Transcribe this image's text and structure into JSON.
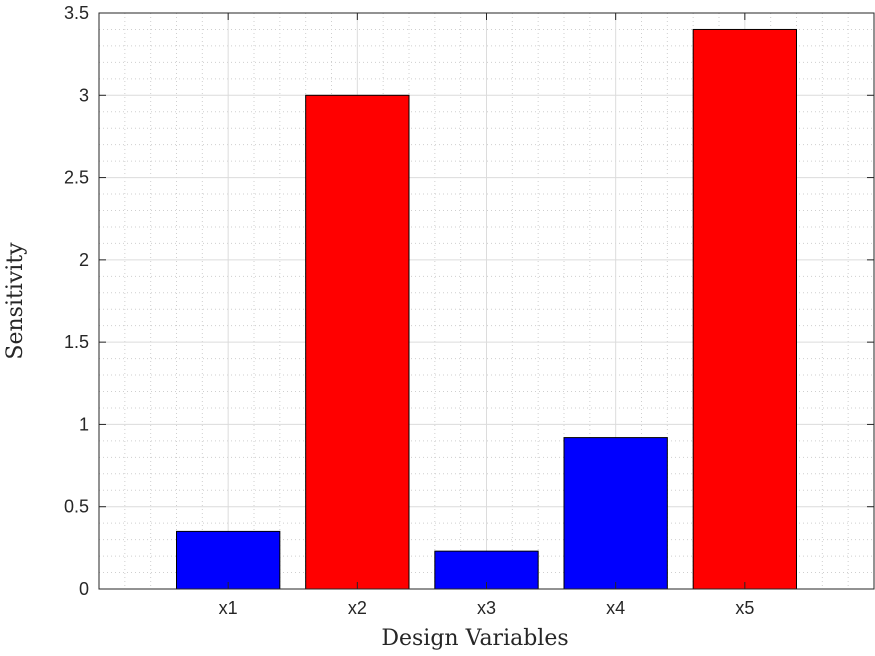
{
  "chart_data": {
    "type": "bar",
    "categories": [
      "x1",
      "x2",
      "x3",
      "x4",
      "x5"
    ],
    "values": [
      0.35,
      3.0,
      0.23,
      0.92,
      3.4
    ],
    "bar_colors": [
      "#0000ff",
      "#ff0000",
      "#0000ff",
      "#0000ff",
      "#ff0000"
    ],
    "xlabel": "Design Variables",
    "ylabel": "Sensitivity",
    "ylim": [
      0,
      3.5
    ],
    "yticks": [
      0,
      0.5,
      1,
      1.5,
      2,
      2.5,
      3,
      3.5
    ],
    "ytick_labels": [
      "0",
      "0.5",
      "1",
      "1.5",
      "2",
      "2.5",
      "3",
      "3.5"
    ],
    "xlim": [
      0,
      6
    ],
    "grid": true,
    "minor_grid": true
  }
}
